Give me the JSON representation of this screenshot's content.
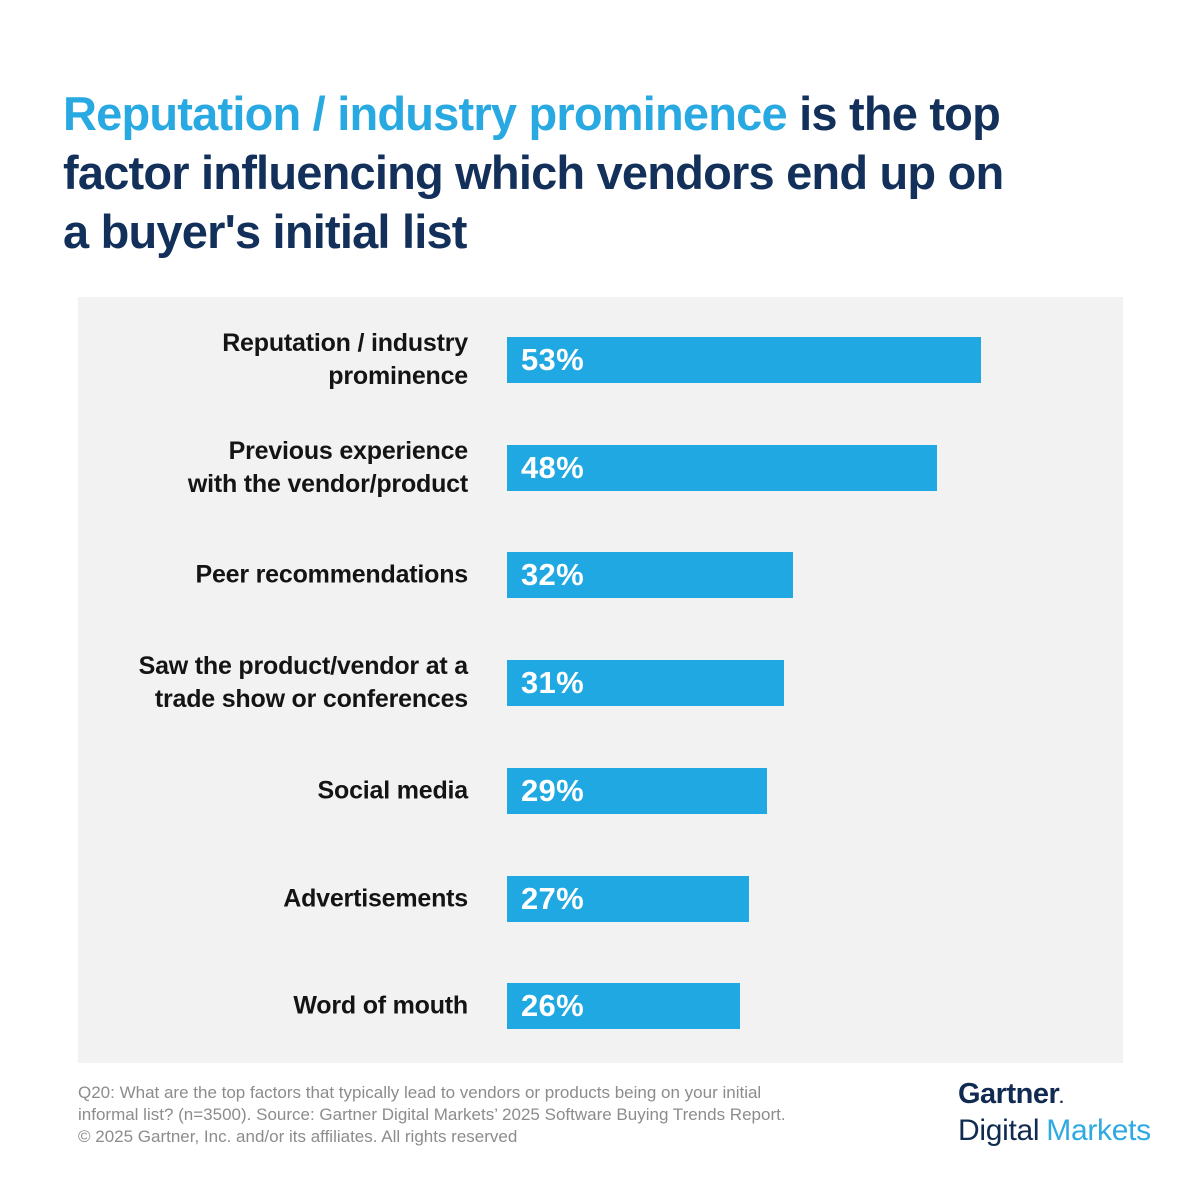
{
  "title": {
    "accent": "Reputation / industry prominence",
    "rest_line1": " is the top",
    "line2": "factor influencing which vendors end up on",
    "line3": "a buyer's initial list"
  },
  "chart_data": {
    "type": "bar",
    "orientation": "horizontal",
    "title": "Reputation / industry prominence is the top factor influencing which vendors end up on a buyer's initial list",
    "categories": [
      "Reputation / industry prominence",
      "Previous experience with the vendor/product",
      "Peer recommendations",
      "Saw the product/vendor at a trade show or conferences",
      "Social media",
      "Advertisements",
      "Word of mouth"
    ],
    "label_lines": [
      [
        "Reputation / industry",
        "prominence"
      ],
      [
        "Previous experience",
        "with the vendor/product"
      ],
      [
        "Peer recommendations"
      ],
      [
        "Saw the product/vendor at a",
        "trade show or conferences"
      ],
      [
        "Social media"
      ],
      [
        "Advertisements"
      ],
      [
        "Word of mouth"
      ]
    ],
    "values": [
      53,
      48,
      32,
      31,
      29,
      27,
      26
    ],
    "value_labels": [
      "53%",
      "48%",
      "32%",
      "31%",
      "29%",
      "27%",
      "26%"
    ],
    "unit": "%",
    "xlabel": "",
    "ylabel": "",
    "grid": false,
    "legend": "none",
    "axis": "none",
    "value_label_position": "inside-left"
  },
  "colors": {
    "bar_blue": "#1FA8E2",
    "title_accent_blue": "#29A9E1",
    "title_navy": "#13305B",
    "panel_background": "#F2F2F2",
    "page_background": "#FFFFFF",
    "category_label": "#141414",
    "footnote_gray": "#8C8C8C",
    "logo_navy": "#112A52",
    "logo_blue": "#2FA9E1"
  },
  "footer": {
    "line1": "Q20: What are the top factors that typically lead to vendors or products being on your initial",
    "line2": "informal list? (n=3500). Source: Gartner Digital Markets’ 2025 Software Buying Trends Report.",
    "line3": "© 2025 Gartner, Inc. and/or its affiliates. All rights reserved"
  },
  "logo": {
    "gartner": "Gartner",
    "dot": ".",
    "digital": "Digital",
    "markets": "Markets"
  }
}
